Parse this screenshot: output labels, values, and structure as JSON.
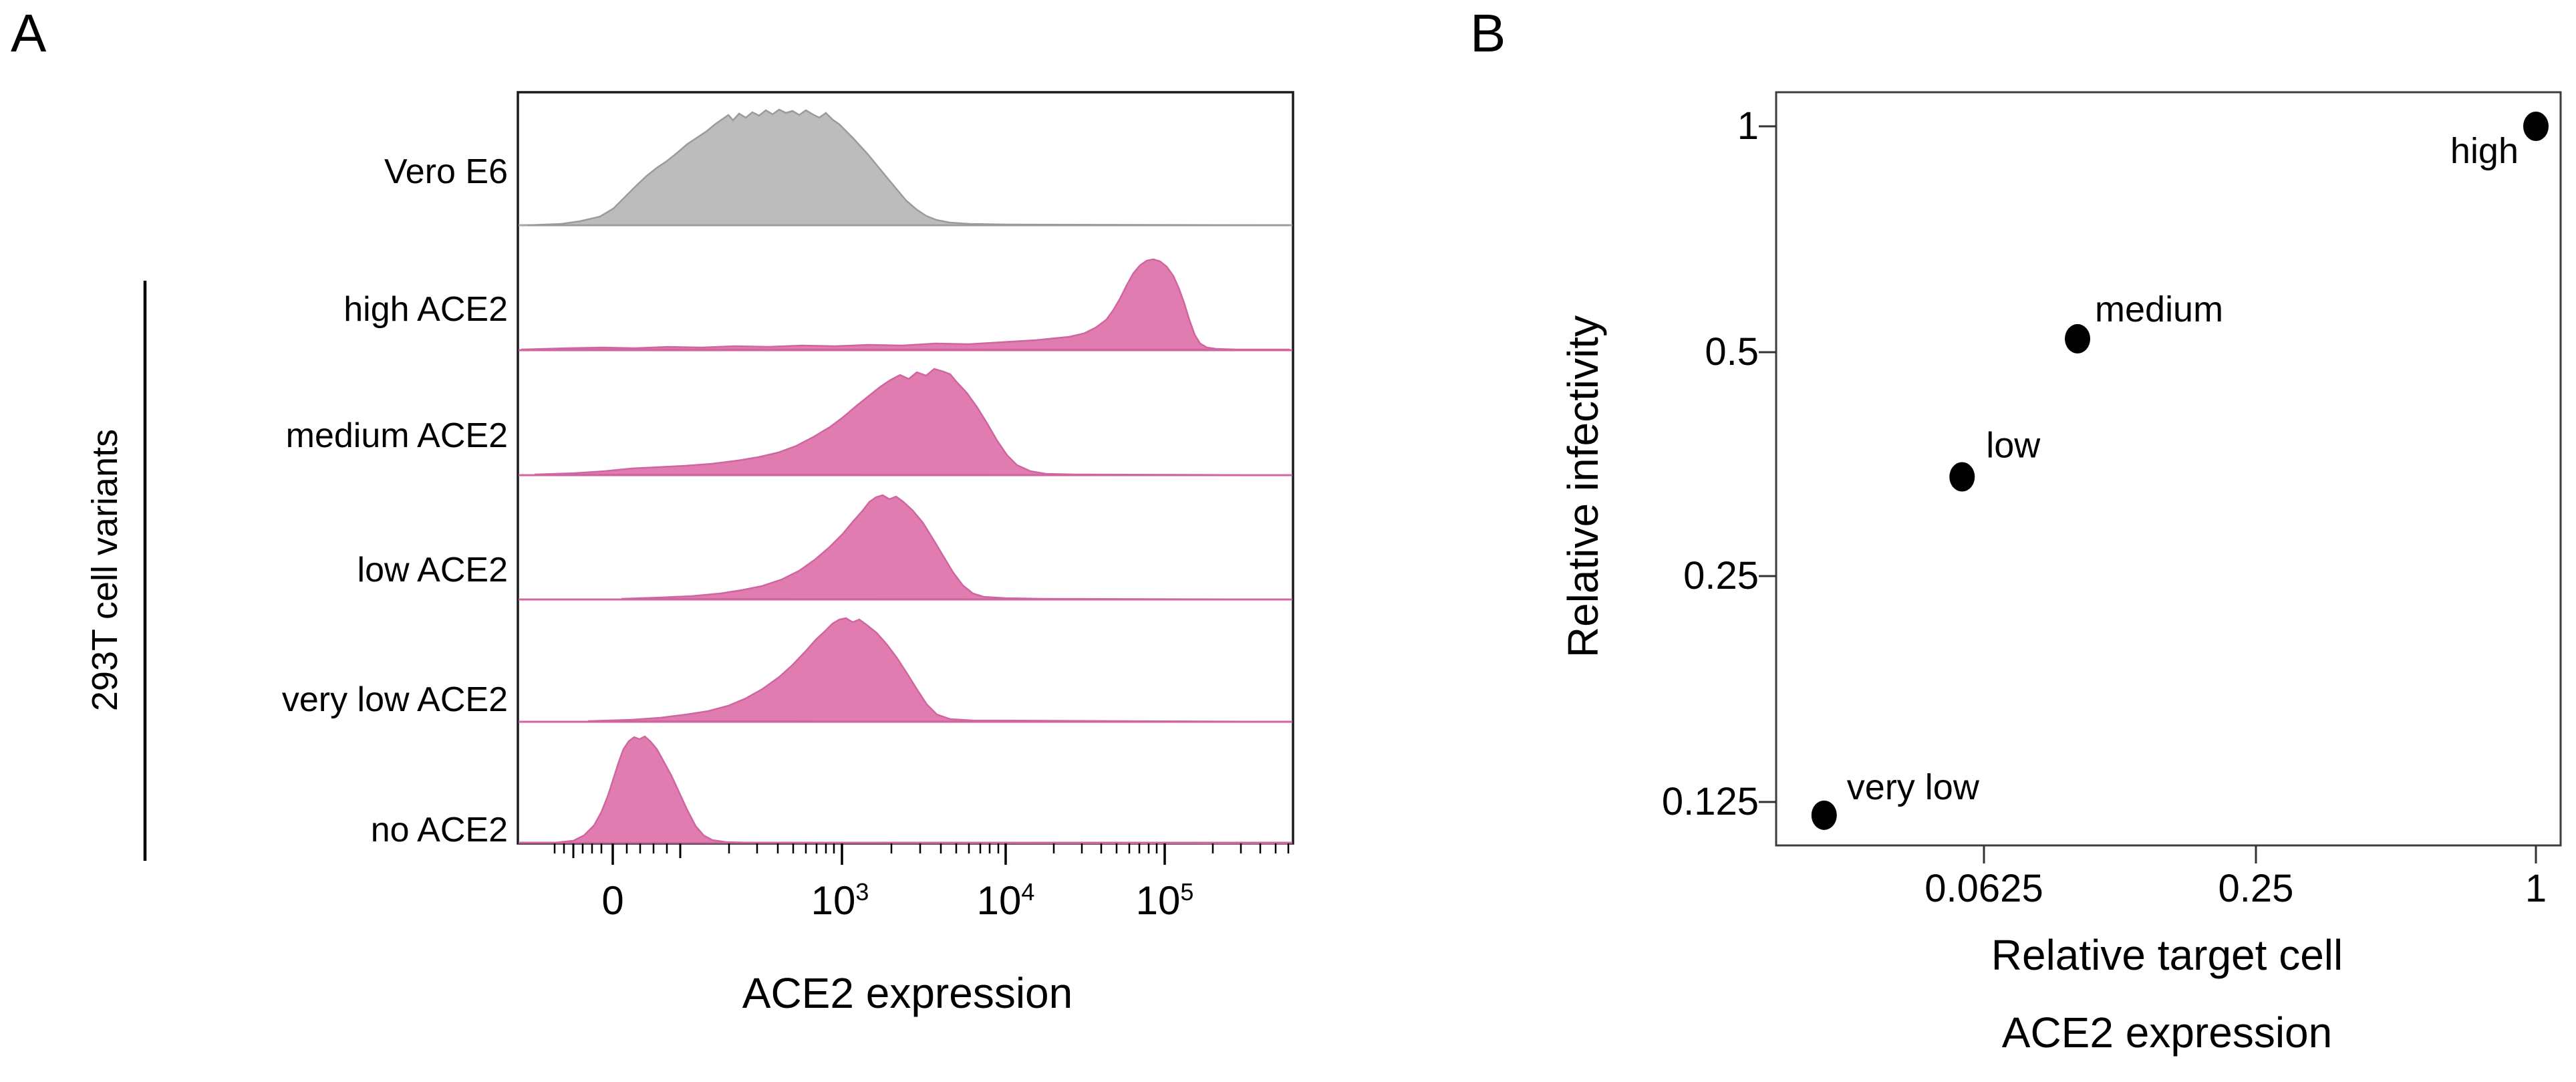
{
  "panelA": {
    "label": "A",
    "group_label": "293T cell variants",
    "rows": [
      {
        "name": "Vero E6"
      },
      {
        "name": "high ACE2"
      },
      {
        "name": "medium ACE2"
      },
      {
        "name": "low ACE2"
      },
      {
        "name": "very low ACE2"
      },
      {
        "name": "no ACE2"
      }
    ],
    "x_axis": {
      "label": "ACE2 expression",
      "ticks": [
        {
          "base": "0",
          "exp": ""
        },
        {
          "base": "10",
          "exp": "3"
        },
        {
          "base": "10",
          "exp": "4"
        },
        {
          "base": "10",
          "exp": "5"
        }
      ]
    }
  },
  "panelB": {
    "label": "B",
    "y_axis": {
      "label": "Relative infectivity",
      "ticks": [
        "1",
        "0.5",
        "0.25",
        "0.125"
      ]
    },
    "x_axis": {
      "label_line1": "Relative target cell",
      "label_line2": "ACE2 expression",
      "ticks": [
        "0.0625",
        "0.25",
        "1"
      ]
    }
  },
  "colors": {
    "pink_fill": "#e07cb0",
    "pink_stroke": "#d066a0",
    "gray_fill": "#bcbcbc",
    "gray_stroke": "#9b9b9b",
    "frame_black": "#1a1a1a",
    "frame_gray": "#3d3d3d",
    "point_color": "#000000"
  },
  "chart_data": [
    {
      "type": "area",
      "subtype": "ridgeline flow-cytometry histograms",
      "panel": "A",
      "title": "",
      "xlabel": "ACE2 expression",
      "ylabel": "",
      "x_scale": "biexponential (logicle), decades 10^3-10^5 plus linear region around 0",
      "x_ticks": [
        "0",
        "1e3",
        "1e4",
        "1e5"
      ],
      "grid": false,
      "series": [
        {
          "name": "Vero E6",
          "fill": "#bcbcbc",
          "mode_x": 800,
          "range": "≈0 to 5e3, broad multi-bump peak"
        },
        {
          "name": "high ACE2",
          "fill": "#e07cb0",
          "mode_x": 90000,
          "range": "low plateau then sharp tall peak at ≈9e4"
        },
        {
          "name": "medium ACE2",
          "fill": "#e07cb0",
          "mode_x": 4000,
          "range": "≈1e2 to 2e4, broad with long left tail"
        },
        {
          "name": "low ACE2",
          "fill": "#e07cb0",
          "mode_x": 1800,
          "range": "≈2e2 to 8e3"
        },
        {
          "name": "very low ACE2",
          "fill": "#e07cb0",
          "mode_x": 1300,
          "range": "≈1e2 to 6e3, bumpy double top"
        },
        {
          "name": "no ACE2",
          "fill": "#e07cb0",
          "mode_x": 50,
          "range": "narrow peak just above 0"
        }
      ]
    },
    {
      "type": "scatter",
      "panel": "B",
      "title": "",
      "xlabel": "Relative target cell ACE2 expression",
      "ylabel": "Relative infectivity",
      "x_scale": "log",
      "y_scale": "log",
      "x_ticks": [
        0.0625,
        0.25,
        1
      ],
      "y_ticks": [
        0.125,
        0.25,
        0.5,
        1
      ],
      "xlim": [
        0.02,
        1.15
      ],
      "ylim": [
        0.105,
        1.2
      ],
      "grid": false,
      "legend": "none (points labeled directly)",
      "points": [
        {
          "label": "high",
          "x": 1.0,
          "y": 1.0
        },
        {
          "label": "medium",
          "x": 0.1,
          "y": 0.52
        },
        {
          "label": "low",
          "x": 0.056,
          "y": 0.34
        },
        {
          "label": "very low",
          "x": 0.028,
          "y": 0.12
        }
      ]
    }
  ]
}
